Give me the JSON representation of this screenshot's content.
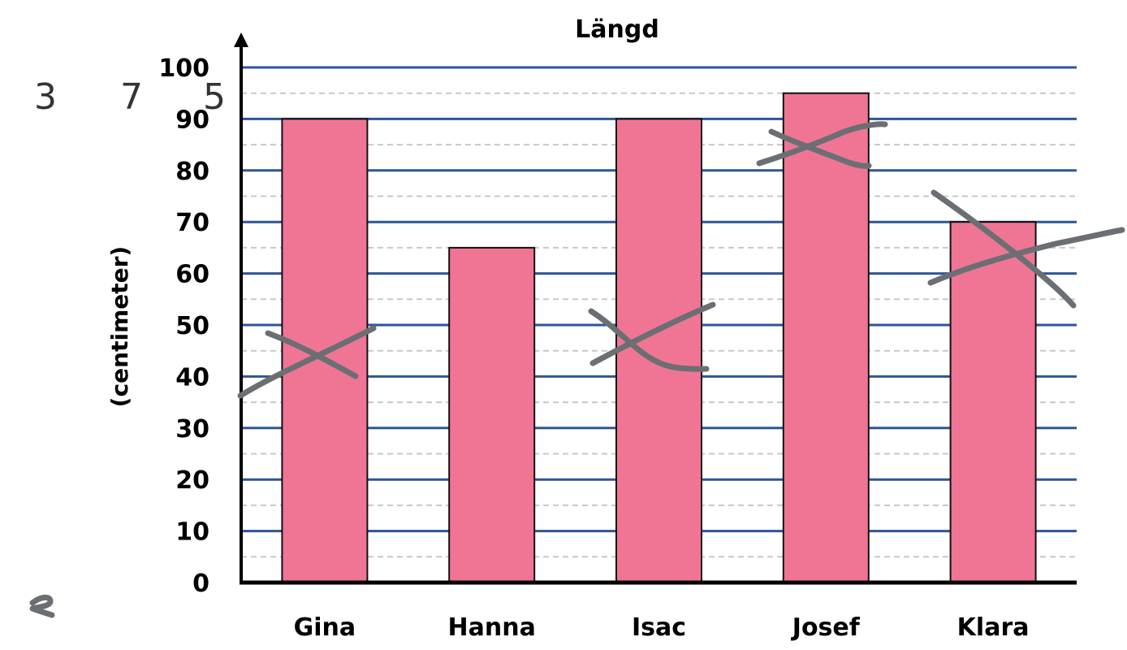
{
  "chart_data": {
    "type": "bar",
    "title": "Längd",
    "ylabel": "(centimeter)",
    "xlabel": "",
    "categories": [
      "Gina",
      "Hanna",
      "Isac",
      "Josef",
      "Klara"
    ],
    "values": [
      90,
      65,
      90,
      95,
      70
    ],
    "ylim": [
      0,
      100
    ],
    "yticks": [
      0,
      10,
      20,
      30,
      40,
      50,
      60,
      70,
      80,
      90,
      100
    ],
    "grid": true,
    "colors": {
      "bar": "#f07595",
      "bar_stroke": "#111111",
      "major_grid": "#2e5597",
      "minor_grid": "#c8c8c8",
      "axis": "#000000",
      "pen": "#6b6f73"
    }
  },
  "annotations": {
    "handwritten_numbers": [
      "3",
      "7",
      "5"
    ]
  }
}
